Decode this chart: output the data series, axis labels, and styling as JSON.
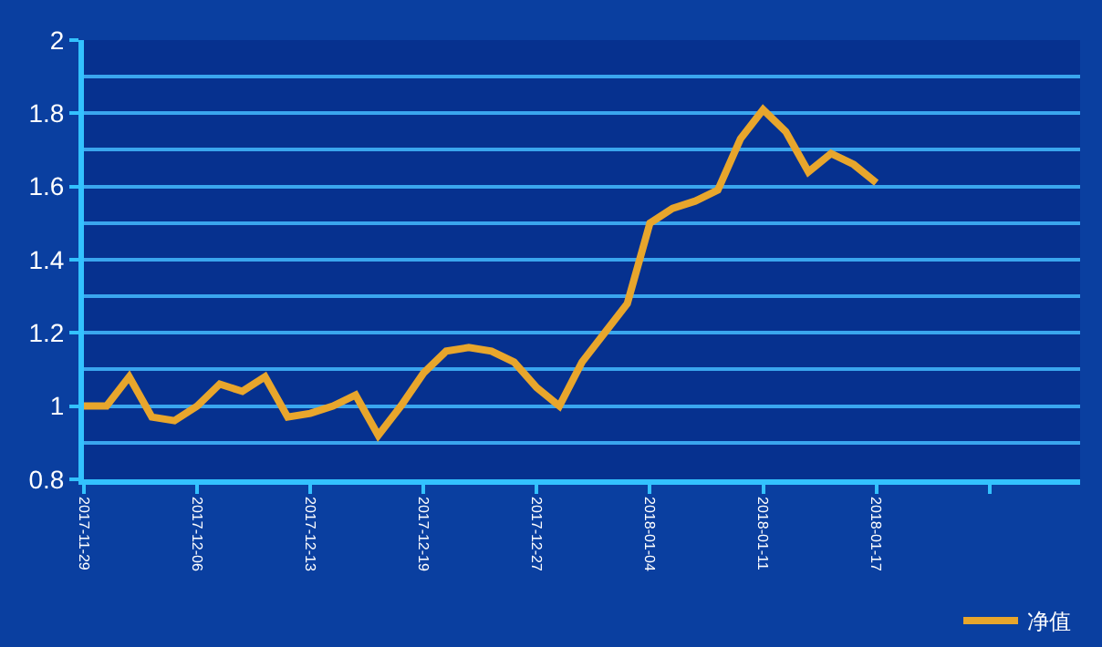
{
  "chart_data": {
    "type": "line",
    "categories": [
      "2017-11-29",
      null,
      null,
      null,
      null,
      "2017-12-06",
      null,
      null,
      null,
      null,
      "2017-12-13",
      null,
      null,
      null,
      null,
      "2017-12-19",
      null,
      null,
      null,
      null,
      "2017-12-27",
      null,
      null,
      null,
      null,
      "2018-01-04",
      null,
      null,
      null,
      null,
      "2018-01-11",
      null,
      null,
      null,
      null,
      "2018-01-17",
      null,
      null,
      null,
      null,
      null,
      null,
      null,
      null,
      null
    ],
    "series": [
      {
        "name": "净值",
        "color": "#e8a62c",
        "values": [
          1.0,
          1.0,
          1.08,
          0.97,
          0.96,
          1.0,
          1.06,
          1.04,
          1.08,
          0.97,
          0.98,
          1.0,
          1.03,
          0.92,
          1.0,
          1.09,
          1.15,
          1.16,
          1.15,
          1.12,
          1.05,
          1.0,
          1.12,
          1.2,
          1.28,
          1.5,
          1.54,
          1.56,
          1.59,
          1.73,
          1.81,
          1.75,
          1.64,
          1.69,
          1.66,
          1.61,
          null,
          null,
          null,
          null,
          null,
          null,
          null,
          null,
          null
        ]
      }
    ],
    "ylim": [
      0.8,
      2
    ],
    "yticks": [
      0.8,
      1,
      1.2,
      1.4,
      1.6,
      1.8,
      2
    ],
    "grid": "y",
    "legend": "bottom right",
    "marker": "none",
    "line_style": "solid"
  }
}
